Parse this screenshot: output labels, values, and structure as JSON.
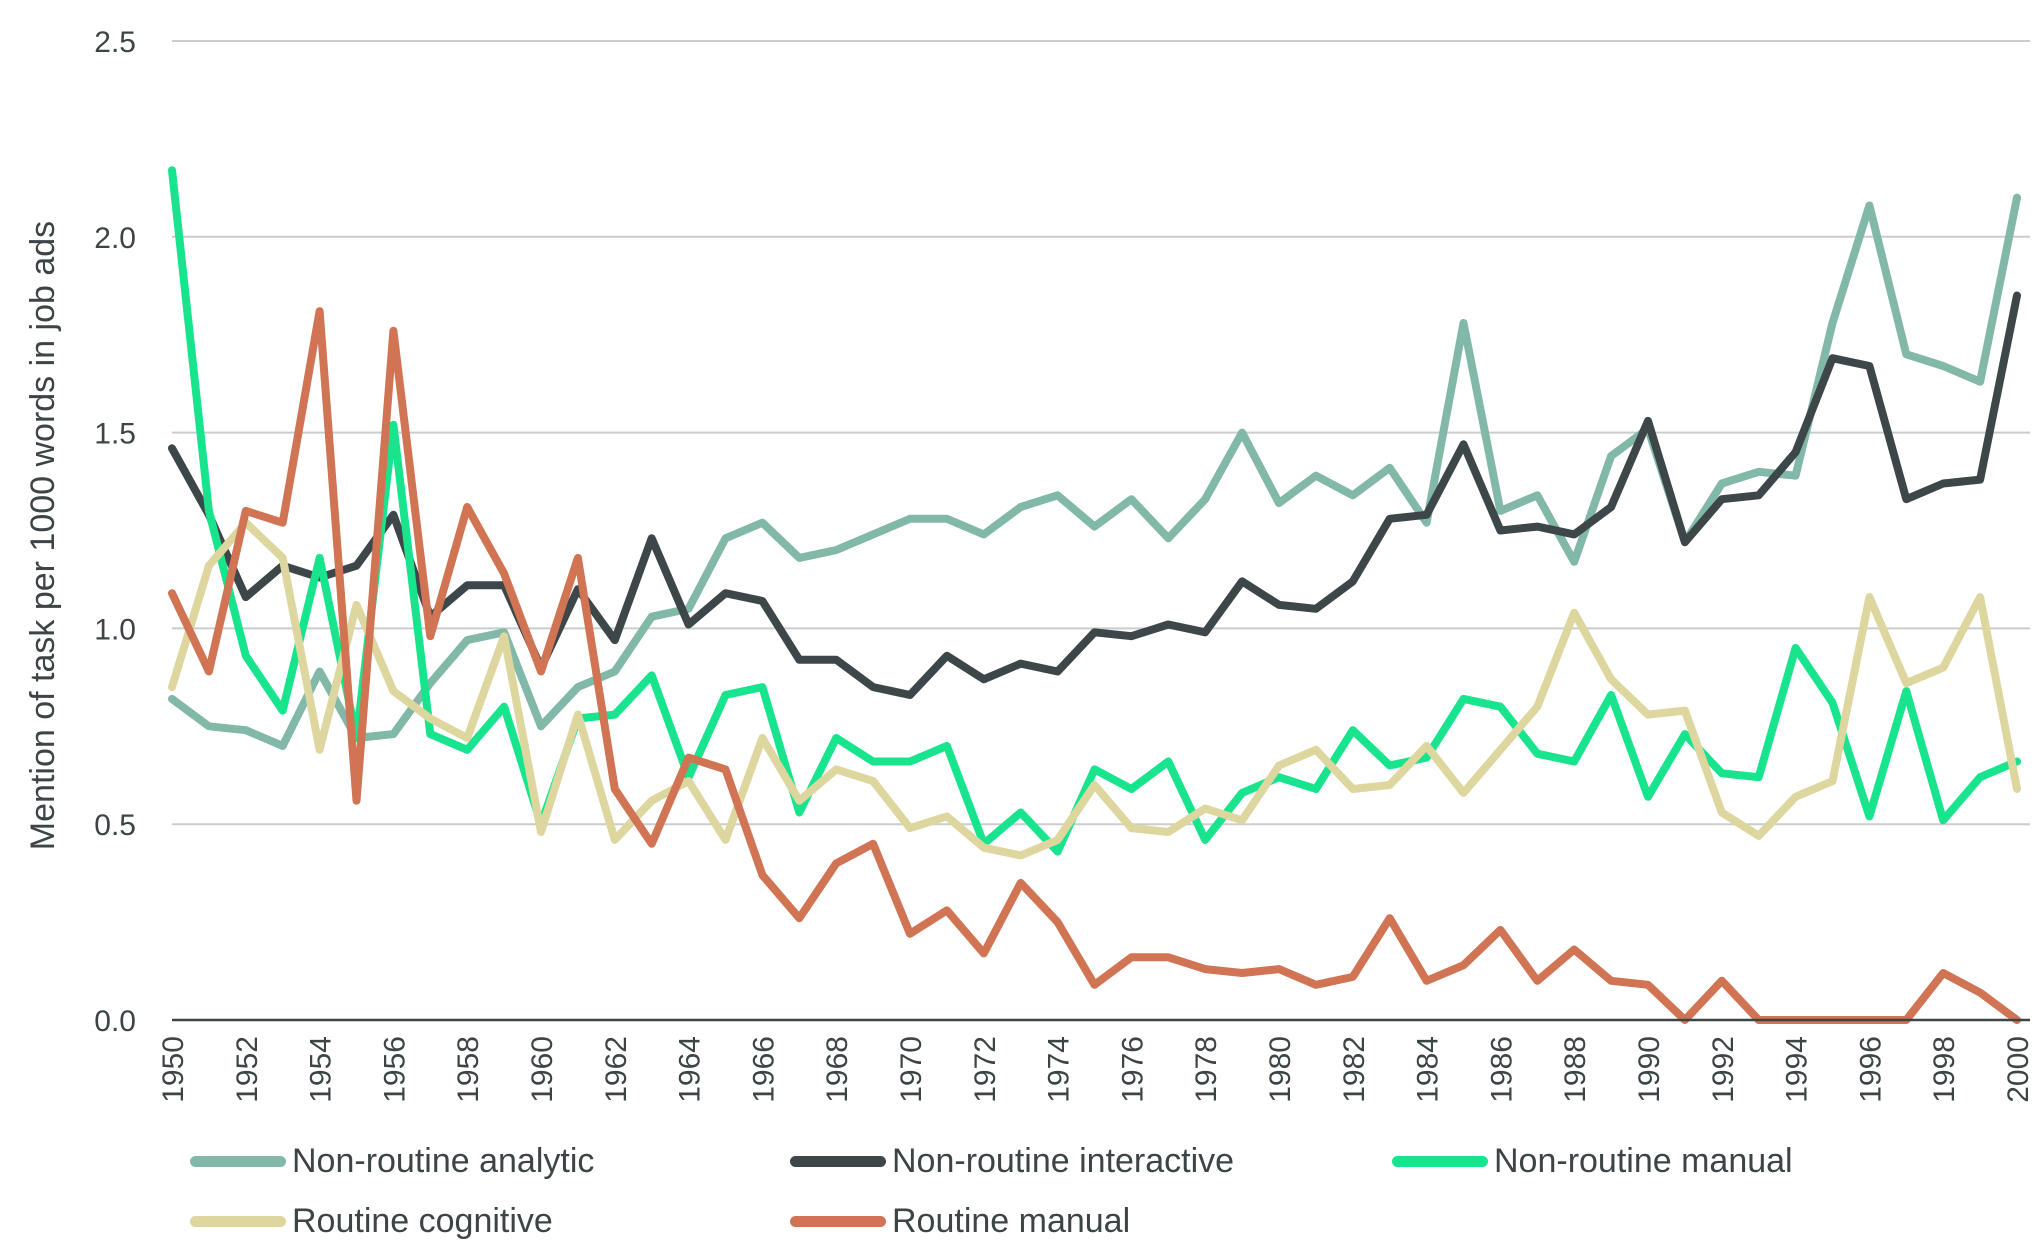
{
  "chart_data": {
    "type": "line",
    "ylabel": "Mention of task per 1000 words in job ads",
    "xlabel": "",
    "ylim": [
      0,
      2.5
    ],
    "yticks": [
      "0.0",
      "0.5",
      "1.0",
      "1.5",
      "2.0",
      "2.5"
    ],
    "xlim": [
      1950,
      2000
    ],
    "grid": "horizontal",
    "legend_position": "bottom",
    "x": [
      1950,
      1951,
      1952,
      1953,
      1954,
      1955,
      1956,
      1957,
      1958,
      1959,
      1960,
      1961,
      1962,
      1963,
      1964,
      1965,
      1966,
      1967,
      1968,
      1969,
      1970,
      1971,
      1972,
      1973,
      1974,
      1975,
      1976,
      1977,
      1978,
      1979,
      1980,
      1981,
      1982,
      1983,
      1984,
      1985,
      1986,
      1987,
      1988,
      1989,
      1990,
      1991,
      1992,
      1993,
      1994,
      1995,
      1996,
      1997,
      1998,
      1999,
      2000
    ],
    "series": [
      {
        "name": "Non-routine analytic",
        "color": "#82b8a8",
        "values": [
          0.82,
          0.75,
          0.74,
          0.7,
          0.89,
          0.72,
          0.73,
          0.86,
          0.97,
          0.99,
          0.75,
          0.85,
          0.89,
          1.03,
          1.05,
          1.23,
          1.27,
          1.18,
          1.2,
          1.24,
          1.28,
          1.28,
          1.24,
          1.31,
          1.34,
          1.26,
          1.33,
          1.23,
          1.33,
          1.5,
          1.32,
          1.39,
          1.34,
          1.41,
          1.27,
          1.78,
          1.3,
          1.34,
          1.17,
          1.44,
          1.51,
          1.22,
          1.37,
          1.4,
          1.39,
          1.78,
          2.08,
          1.7,
          1.67,
          1.63,
          2.1
        ]
      },
      {
        "name": "Non-routine interactive",
        "color": "#3d4648",
        "values": [
          1.46,
          1.29,
          1.08,
          1.16,
          1.13,
          1.16,
          1.29,
          1.03,
          1.11,
          1.11,
          0.9,
          1.1,
          0.97,
          1.23,
          1.01,
          1.09,
          1.07,
          0.92,
          0.92,
          0.85,
          0.83,
          0.93,
          0.87,
          0.91,
          0.89,
          0.99,
          0.98,
          1.01,
          0.99,
          1.12,
          1.06,
          1.05,
          1.12,
          1.28,
          1.29,
          1.47,
          1.25,
          1.26,
          1.24,
          1.31,
          1.53,
          1.22,
          1.33,
          1.34,
          1.45,
          1.69,
          1.67,
          1.33,
          1.37,
          1.38,
          1.85
        ]
      },
      {
        "name": "Non-routine manual",
        "color": "#18e48e",
        "values": [
          2.17,
          1.3,
          0.93,
          0.79,
          1.18,
          0.72,
          1.52,
          0.73,
          0.69,
          0.8,
          0.5,
          0.77,
          0.78,
          0.88,
          0.62,
          0.83,
          0.85,
          0.53,
          0.72,
          0.66,
          0.66,
          0.7,
          0.45,
          0.53,
          0.43,
          0.64,
          0.59,
          0.66,
          0.46,
          0.58,
          0.62,
          0.59,
          0.74,
          0.65,
          0.67,
          0.82,
          0.8,
          0.68,
          0.66,
          0.83,
          0.57,
          0.73,
          0.63,
          0.62,
          0.95,
          0.81,
          0.52,
          0.84,
          0.51,
          0.62,
          0.66
        ]
      },
      {
        "name": "Routine cognitive",
        "color": "#ddd79f",
        "values": [
          0.85,
          1.16,
          1.27,
          1.18,
          0.69,
          1.06,
          0.84,
          0.77,
          0.72,
          0.98,
          0.48,
          0.78,
          0.46,
          0.56,
          0.61,
          0.46,
          0.72,
          0.56,
          0.64,
          0.61,
          0.49,
          0.52,
          0.44,
          0.42,
          0.46,
          0.6,
          0.49,
          0.48,
          0.54,
          0.51,
          0.65,
          0.69,
          0.59,
          0.6,
          0.7,
          0.58,
          0.69,
          0.8,
          1.04,
          0.87,
          0.78,
          0.79,
          0.53,
          0.47,
          0.57,
          0.61,
          1.08,
          0.86,
          0.9,
          1.08,
          0.59
        ]
      },
      {
        "name": "Routine manual",
        "color": "#d07454",
        "values": [
          1.09,
          0.89,
          1.3,
          1.27,
          1.81,
          0.56,
          1.76,
          0.98,
          1.31,
          1.14,
          0.89,
          1.18,
          0.59,
          0.45,
          0.67,
          0.64,
          0.37,
          0.26,
          0.4,
          0.45,
          0.22,
          0.28,
          0.17,
          0.35,
          0.25,
          0.09,
          0.16,
          0.16,
          0.13,
          0.12,
          0.13,
          0.09,
          0.11,
          0.26,
          0.1,
          0.14,
          0.23,
          0.1,
          0.18,
          0.1,
          0.09,
          0.0,
          0.1,
          0.0,
          0.0,
          0.0,
          0.0,
          0.0,
          0.12,
          0.07,
          0.0
        ]
      }
    ]
  }
}
